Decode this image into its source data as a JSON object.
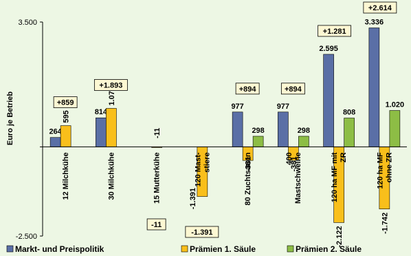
{
  "colors": {
    "background": "#edf7e4",
    "markt": "#5a6fa6",
    "praemien1": "#f9bf1b",
    "praemien2": "#8dbd45",
    "diff_box": "#fdf8d3"
  },
  "chart_data": {
    "type": "bar",
    "ylabel": "Euro je Betrieb",
    "yticks": [
      "3.500",
      "-2.500"
    ],
    "ytick_values": [
      3500,
      -2500
    ],
    "ylim": [
      -2500,
      3500
    ],
    "grid": false,
    "legend_position": "bottom",
    "categories": [
      [
        "12 Milchkühe"
      ],
      [
        "30 Milchkühe"
      ],
      [
        "15 Mutterkühe"
      ],
      [
        "120 Mast-",
        "stiere"
      ],
      [
        "80 Zuchtsauen"
      ],
      [
        "400",
        "Mastschweine"
      ],
      [
        "120 ha MF mit",
        "ZR"
      ],
      [
        "120 ha MF",
        "ohne ZR"
      ]
    ],
    "series": [
      {
        "name": "Markt- und Preispolitik",
        "values": [
          264,
          814,
          0,
          0,
          977,
          977,
          2595,
          3336
        ],
        "labels": [
          "264",
          "814",
          "",
          "",
          "977",
          "977",
          "2.595",
          "3.336"
        ]
      },
      {
        "name": "Prämien 1. Säule",
        "values": [
          595,
          1079,
          -11,
          -1391,
          -381,
          -381,
          -2122,
          -1742
        ],
        "labels": [
          "595",
          "1.079",
          "-11",
          "-1.391",
          "-381",
          "-381",
          "-2.122",
          "-1.742"
        ]
      },
      {
        "name": "Prämien 2. Säule",
        "values": [
          0,
          0,
          0,
          0,
          298,
          298,
          808,
          1020
        ],
        "labels": [
          "",
          "",
          "",
          "",
          "298",
          "298",
          "808",
          "1.020"
        ]
      }
    ],
    "totals": {
      "values": [
        859,
        1893,
        -11,
        -1391,
        894,
        894,
        1281,
        2614
      ],
      "labels": [
        "+859",
        "+1.893",
        "-11",
        "-1.391",
        "+894",
        "+894",
        "+1.281",
        "+2.614"
      ]
    }
  }
}
